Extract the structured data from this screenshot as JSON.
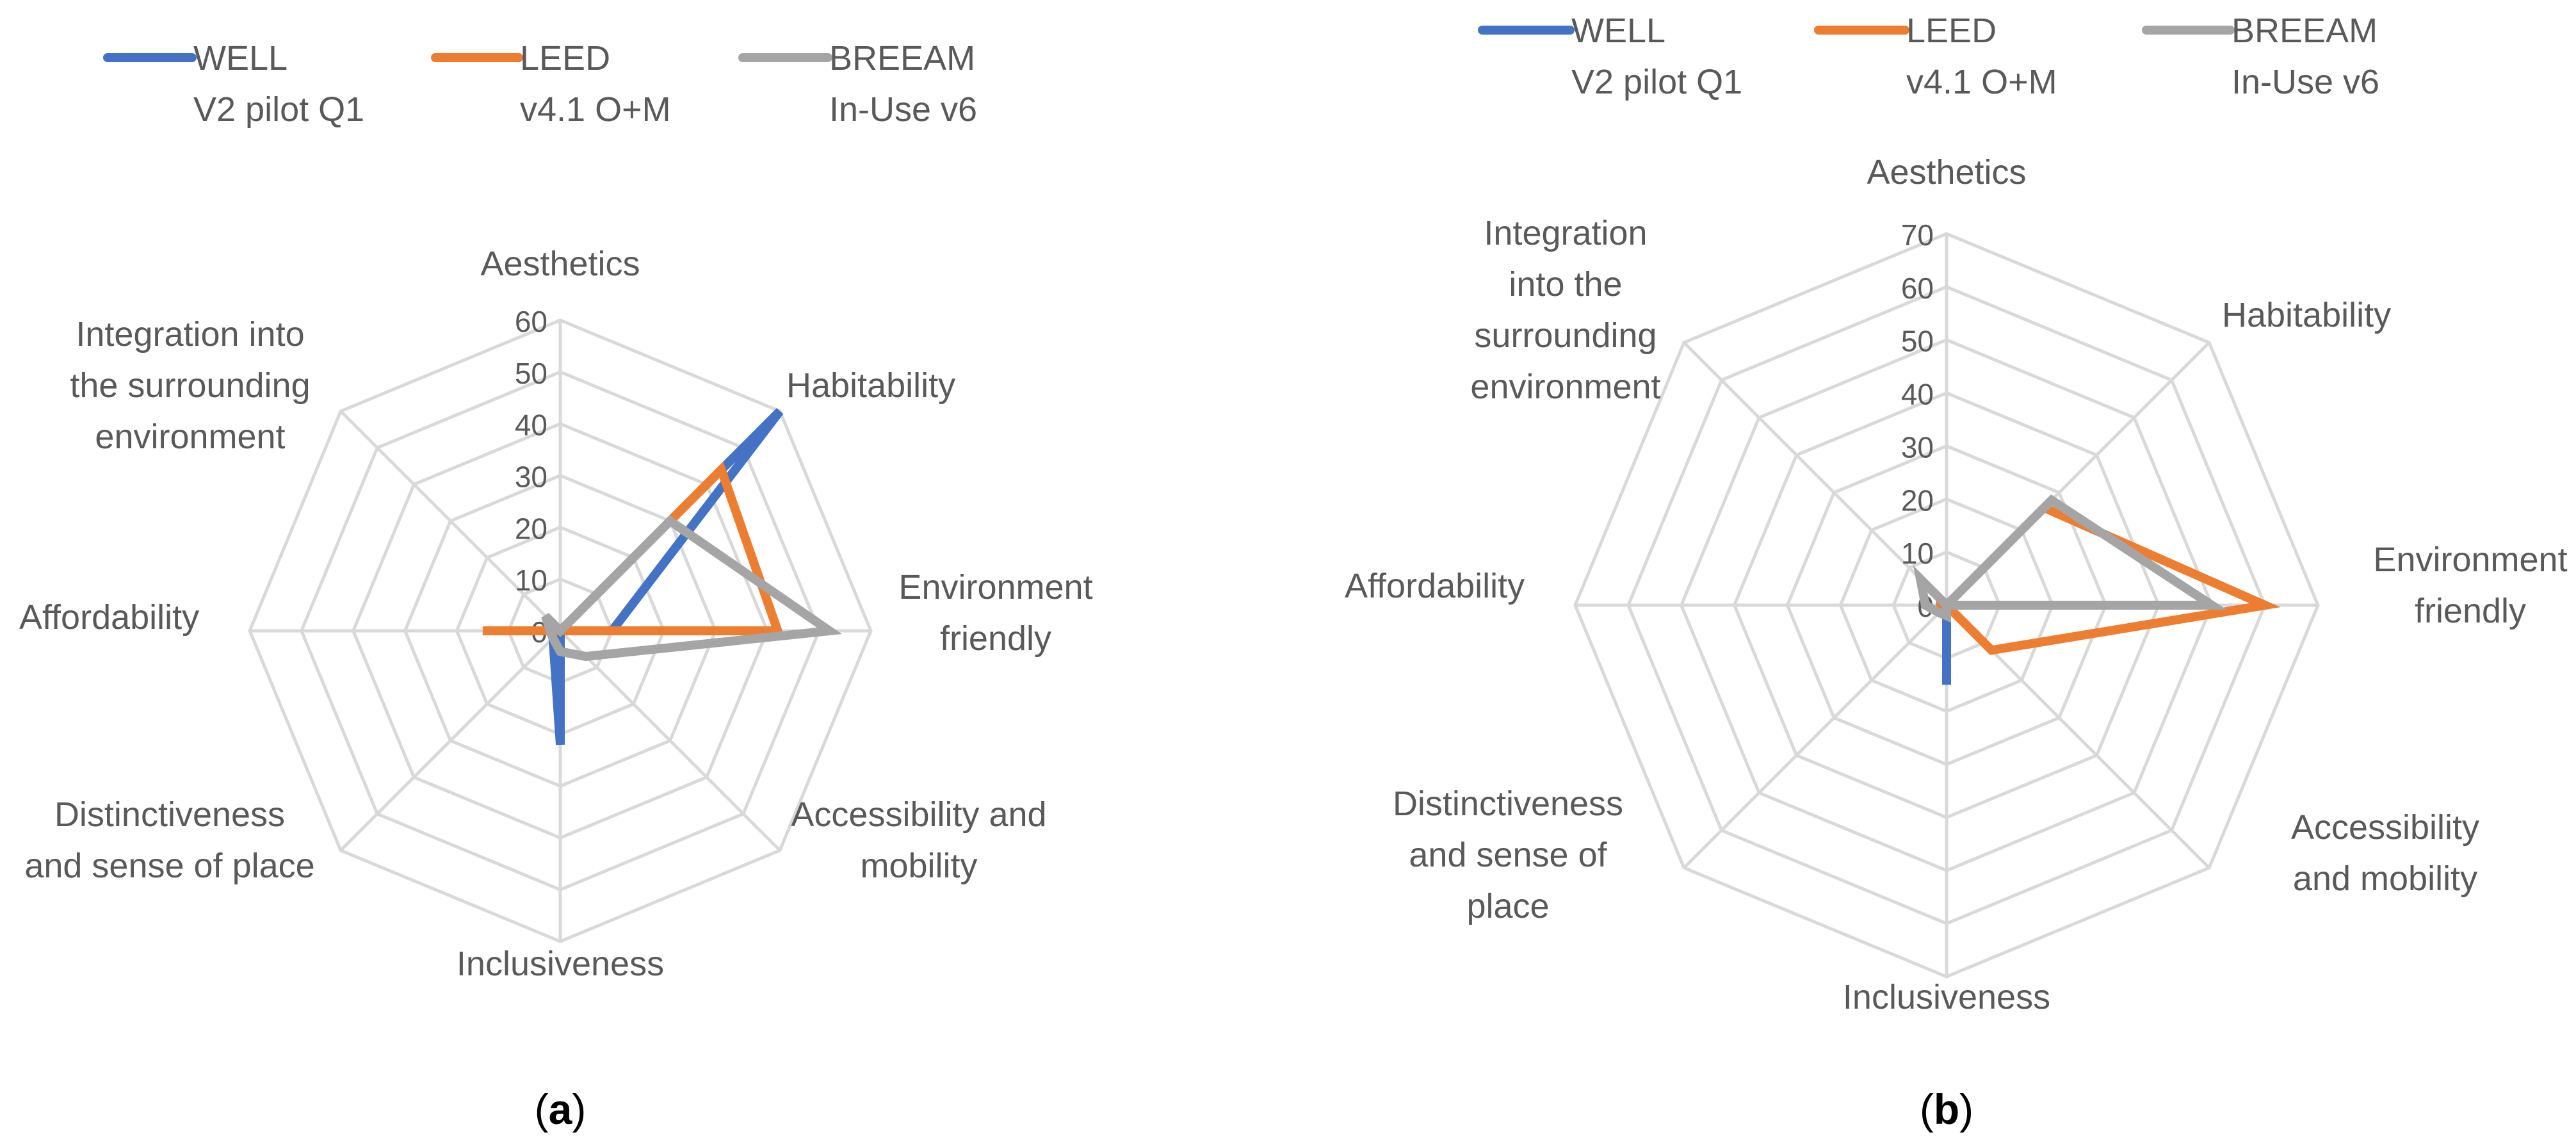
{
  "categories": [
    "Aesthetics",
    "Habitability",
    "Environment friendly",
    "Accessibility and mobility",
    "Inclusiveness",
    "Distinctiveness and sense of place",
    "Affordability",
    "Integration into the surrounding environment"
  ],
  "chart_data": [
    {
      "type": "radar",
      "panel_label": "(a)",
      "panel_letter": "a",
      "categories": [
        "Aesthetics",
        "Habitability",
        "Environment friendly",
        "Accessibility and mobility",
        "Inclusiveness",
        "Distinctiveness and sense of place",
        "Affordability",
        "Integration into the surrounding environment"
      ],
      "category_lines": [
        [
          "Aesthetics"
        ],
        [
          "Habitability"
        ],
        [
          "Environment",
          "friendly"
        ],
        [
          "Accessibility and",
          "mobility"
        ],
        [
          "Inclusiveness"
        ],
        [
          "Distinctiveness",
          "and sense of place"
        ],
        [
          "Affordability"
        ],
        [
          "Integration into",
          "the surrounding",
          "environment"
        ]
      ],
      "rlim": [
        0,
        60
      ],
      "ticks": [
        0,
        10,
        20,
        30,
        40,
        50,
        60
      ],
      "series": [
        {
          "name": "WELL V2 pilot Q1",
          "name_lines": [
            "WELL",
            "V2 pilot Q1"
          ],
          "color": "#4472C4",
          "values": [
            0,
            60,
            10,
            0,
            22,
            2,
            0,
            0
          ]
        },
        {
          "name": "LEED v4.1 O+M",
          "name_lines": [
            "LEED",
            "v4.1 O+M"
          ],
          "color": "#ED7D31",
          "values": [
            0,
            44,
            42,
            0,
            0,
            0,
            15,
            0
          ]
        },
        {
          "name": "BREEAM In-Use v6",
          "name_lines": [
            "BREEAM",
            "In-Use v6"
          ],
          "color": "#A5A5A5",
          "values": [
            0,
            30,
            52,
            7,
            4,
            2,
            2,
            4
          ]
        }
      ]
    },
    {
      "type": "radar",
      "panel_label": "(b)",
      "panel_letter": "b",
      "categories": [
        "Aesthetics",
        "Habitability",
        "Environment friendly",
        "Accessibility and mobility",
        "Inclusiveness",
        "Distinctiveness and sense of place",
        "Affordability",
        "Integration into the surrounding environment"
      ],
      "category_lines": [
        [
          "Aesthetics"
        ],
        [
          "Habitability"
        ],
        [
          "Environment",
          "friendly"
        ],
        [
          "Accessibility",
          "and mobility"
        ],
        [
          "Inclusiveness"
        ],
        [
          "Distinctiveness",
          "and sense of",
          "place"
        ],
        [
          "Affordability"
        ],
        [
          "Integration",
          "into the",
          "surrounding",
          "environment"
        ]
      ],
      "rlim": [
        0,
        70
      ],
      "ticks": [
        0,
        10,
        20,
        30,
        40,
        50,
        60,
        70
      ],
      "series": [
        {
          "name": "WELL V2 pilot Q1",
          "name_lines": [
            "WELL",
            "V2 pilot Q1"
          ],
          "color": "#4472C4",
          "values": [
            0,
            0,
            0,
            0,
            15,
            0,
            0,
            0
          ]
        },
        {
          "name": "LEED v4.1 O+M",
          "name_lines": [
            "LEED",
            "v4.1 O+M"
          ],
          "color": "#ED7D31",
          "values": [
            0,
            26,
            60,
            12,
            0,
            0,
            2,
            0
          ]
        },
        {
          "name": "BREEAM In-Use v6",
          "name_lines": [
            "BREEAM",
            "In-Use v6"
          ],
          "color": "#A5A5A5",
          "values": [
            0,
            28,
            50,
            0,
            2,
            2,
            4,
            7
          ]
        }
      ]
    }
  ]
}
